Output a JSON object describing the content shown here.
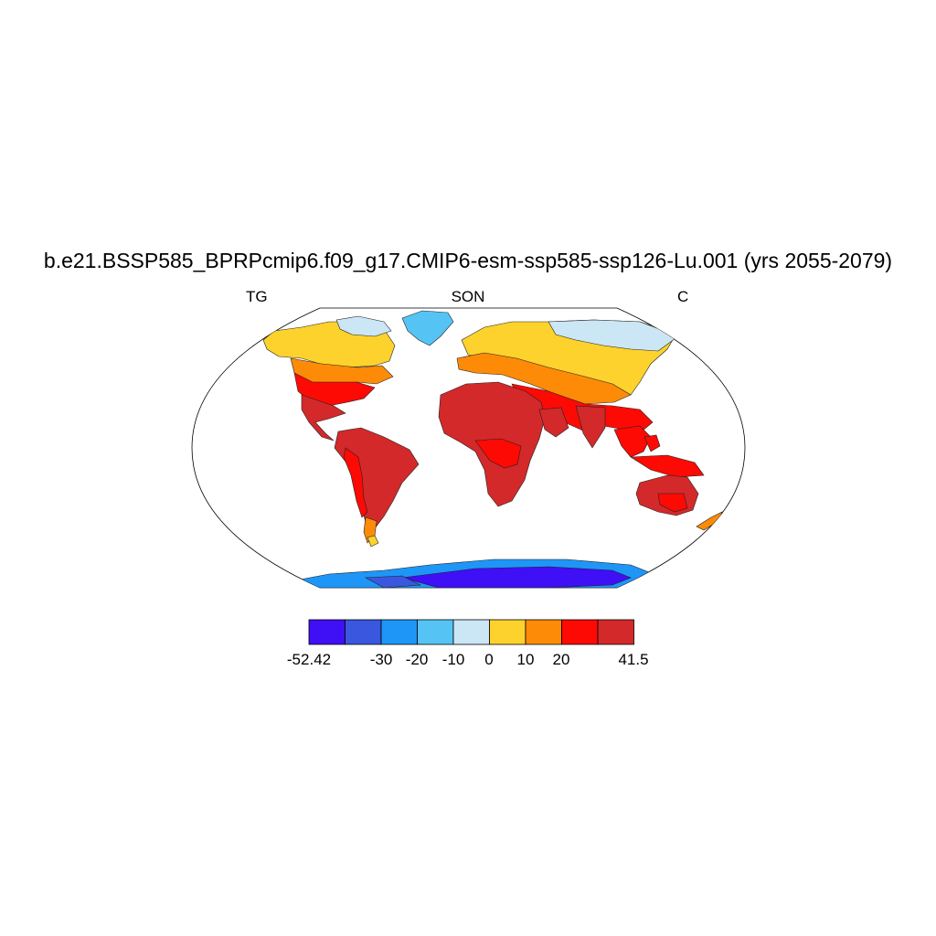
{
  "map": {
    "title": "b.e21.BSSP585_BPRPcmip6.f09_g17.CMIP6-esm-ssp585-ssp126-Lu.001 (yrs 2055-2079)",
    "variable": "TG",
    "season": "SON",
    "units": "C",
    "projection": "Robinson-like world map",
    "colorbar": {
      "labels": [
        "-52.42",
        "-30",
        "-20",
        "-10",
        "0",
        "10",
        "20",
        "41.5"
      ],
      "colors": [
        "#3f0ff5",
        "#3a57e0",
        "#1e96f7",
        "#55c4f5",
        "#cbe6f5",
        "#fdd22c",
        "#fd8b08",
        "#fd0a05",
        "#d3292a"
      ]
    }
  }
}
